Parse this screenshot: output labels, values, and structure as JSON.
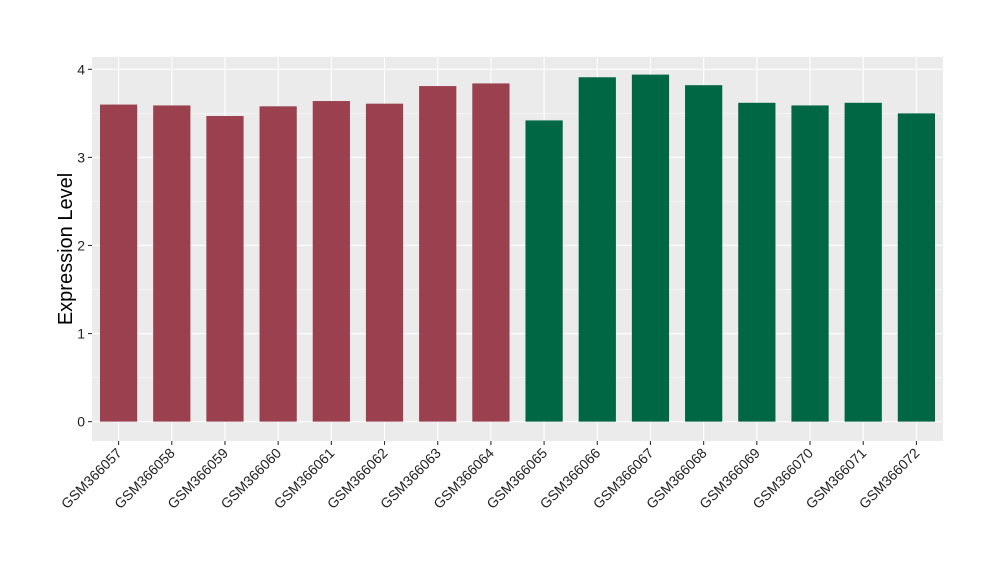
{
  "chart_data": {
    "type": "bar",
    "title": "",
    "xlabel": "",
    "ylabel": "Expression Level",
    "ylim": [
      -0.22,
      4.14
    ],
    "yticks": [
      0,
      1,
      2,
      3,
      4
    ],
    "grid": true,
    "legend": "none",
    "categories": [
      "GSM366057",
      "GSM366058",
      "GSM366059",
      "GSM366060",
      "GSM366061",
      "GSM366062",
      "GSM366063",
      "GSM366064",
      "GSM366065",
      "GSM366066",
      "GSM366067",
      "GSM366068",
      "GSM366069",
      "GSM366070",
      "GSM366071",
      "GSM366072"
    ],
    "values": [
      3.6,
      3.59,
      3.47,
      3.58,
      3.64,
      3.61,
      3.81,
      3.84,
      3.42,
      3.91,
      3.94,
      3.82,
      3.62,
      3.59,
      3.62,
      3.5
    ],
    "groups": [
      0,
      0,
      0,
      0,
      0,
      0,
      0,
      0,
      1,
      1,
      1,
      1,
      1,
      1,
      1,
      1
    ],
    "colors": {
      "group_0": "#9b404f",
      "group_1": "#006744",
      "panel_background": "#ebebeb",
      "grid_line": "#ffffff"
    }
  }
}
